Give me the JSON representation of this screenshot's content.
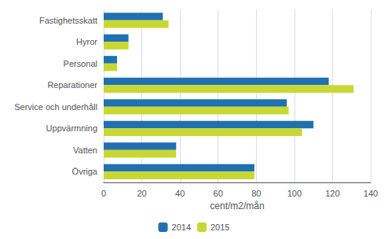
{
  "chart_data": {
    "type": "bar",
    "orientation": "horizontal",
    "categories": [
      "Fastighetsskatt",
      "Hyror",
      "Personal",
      "Reparationer",
      "Service och underhåll",
      "Uppvärmning",
      "Vatten",
      "Övriga"
    ],
    "series": [
      {
        "name": "2014",
        "color": "#2170b0",
        "values": [
          31,
          13,
          7,
          118,
          96,
          110,
          38,
          79
        ]
      },
      {
        "name": "2015",
        "color": "#c8d832",
        "values": [
          34,
          13,
          7,
          131,
          97,
          104,
          38,
          79
        ]
      }
    ],
    "xlabel": "cent/m2/mån",
    "xlim": [
      0,
      140
    ],
    "xticks": [
      0,
      20,
      40,
      60,
      80,
      100,
      120,
      140
    ],
    "grid": true,
    "legend": "bottom"
  }
}
